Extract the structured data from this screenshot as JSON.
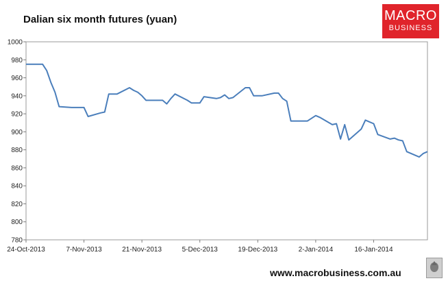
{
  "chart_data": {
    "type": "line",
    "title": "Dalian six month futures (yuan)",
    "xlabel": "",
    "ylabel": "",
    "ylim": [
      780,
      1000
    ],
    "yticks": [
      780,
      800,
      820,
      840,
      860,
      880,
      900,
      920,
      940,
      960,
      980,
      1000
    ],
    "xlim": [
      "2013-10-24",
      "2014-01-29"
    ],
    "xticks": [
      {
        "date": "2013-10-24",
        "label": "24-Oct-2013"
      },
      {
        "date": "2013-11-07",
        "label": "7-Nov-2013"
      },
      {
        "date": "2013-11-21",
        "label": "21-Nov-2013"
      },
      {
        "date": "2013-12-05",
        "label": "5-Dec-2013"
      },
      {
        "date": "2013-12-19",
        "label": "19-Dec-2013"
      },
      {
        "date": "2014-01-02",
        "label": "2-Jan-2014"
      },
      {
        "date": "2014-01-16",
        "label": "16-Jan-2014"
      }
    ],
    "grid": false,
    "legend": "none",
    "line_color": "#4a7ebb",
    "series": [
      {
        "x": [
          "2013-10-24",
          "2013-10-25",
          "2013-10-28",
          "2013-10-29",
          "2013-10-30",
          "2013-10-31",
          "2013-11-01",
          "2013-11-04",
          "2013-11-05",
          "2013-11-06",
          "2013-11-07",
          "2013-11-08",
          "2013-11-11",
          "2013-11-12",
          "2013-11-13",
          "2013-11-14",
          "2013-11-15",
          "2013-11-18",
          "2013-11-19",
          "2013-11-20",
          "2013-11-21",
          "2013-11-22",
          "2013-11-25",
          "2013-11-26",
          "2013-11-27",
          "2013-11-28",
          "2013-11-29",
          "2013-12-02",
          "2013-12-03",
          "2013-12-04",
          "2013-12-05",
          "2013-12-06",
          "2013-12-09",
          "2013-12-10",
          "2013-12-11",
          "2013-12-12",
          "2013-12-13",
          "2013-12-16",
          "2013-12-17",
          "2013-12-18",
          "2013-12-19",
          "2013-12-20",
          "2013-12-23",
          "2013-12-24",
          "2013-12-25",
          "2013-12-26",
          "2013-12-27",
          "2013-12-30",
          "2013-12-31",
          "2014-01-02",
          "2014-01-03",
          "2014-01-06",
          "2014-01-07",
          "2014-01-08",
          "2014-01-09",
          "2014-01-10",
          "2014-01-13",
          "2014-01-14",
          "2014-01-15",
          "2014-01-16",
          "2014-01-17",
          "2014-01-20",
          "2014-01-21",
          "2014-01-22",
          "2014-01-23",
          "2014-01-24",
          "2014-01-27",
          "2014-01-28",
          "2014-01-29"
        ],
        "values": [
          975,
          975,
          975,
          968,
          955,
          944,
          928,
          927,
          927,
          927,
          927,
          917,
          921,
          922,
          942,
          942,
          942,
          949,
          946,
          944,
          940,
          935,
          935,
          935,
          931,
          937,
          942,
          935,
          932,
          932,
          932,
          939,
          937,
          938,
          941,
          937,
          938,
          949,
          949,
          940,
          940,
          940,
          943,
          943,
          937,
          934,
          912,
          912,
          912,
          918,
          916,
          908,
          909,
          892,
          908,
          891,
          903,
          913,
          911,
          909,
          897,
          892,
          893,
          891,
          890,
          878,
          872,
          876,
          878
        ]
      }
    ]
  },
  "branding": {
    "logo_line1": "MACRO",
    "logo_line2": "BUSINESS",
    "url": "www.macrobusiness.com.au"
  }
}
